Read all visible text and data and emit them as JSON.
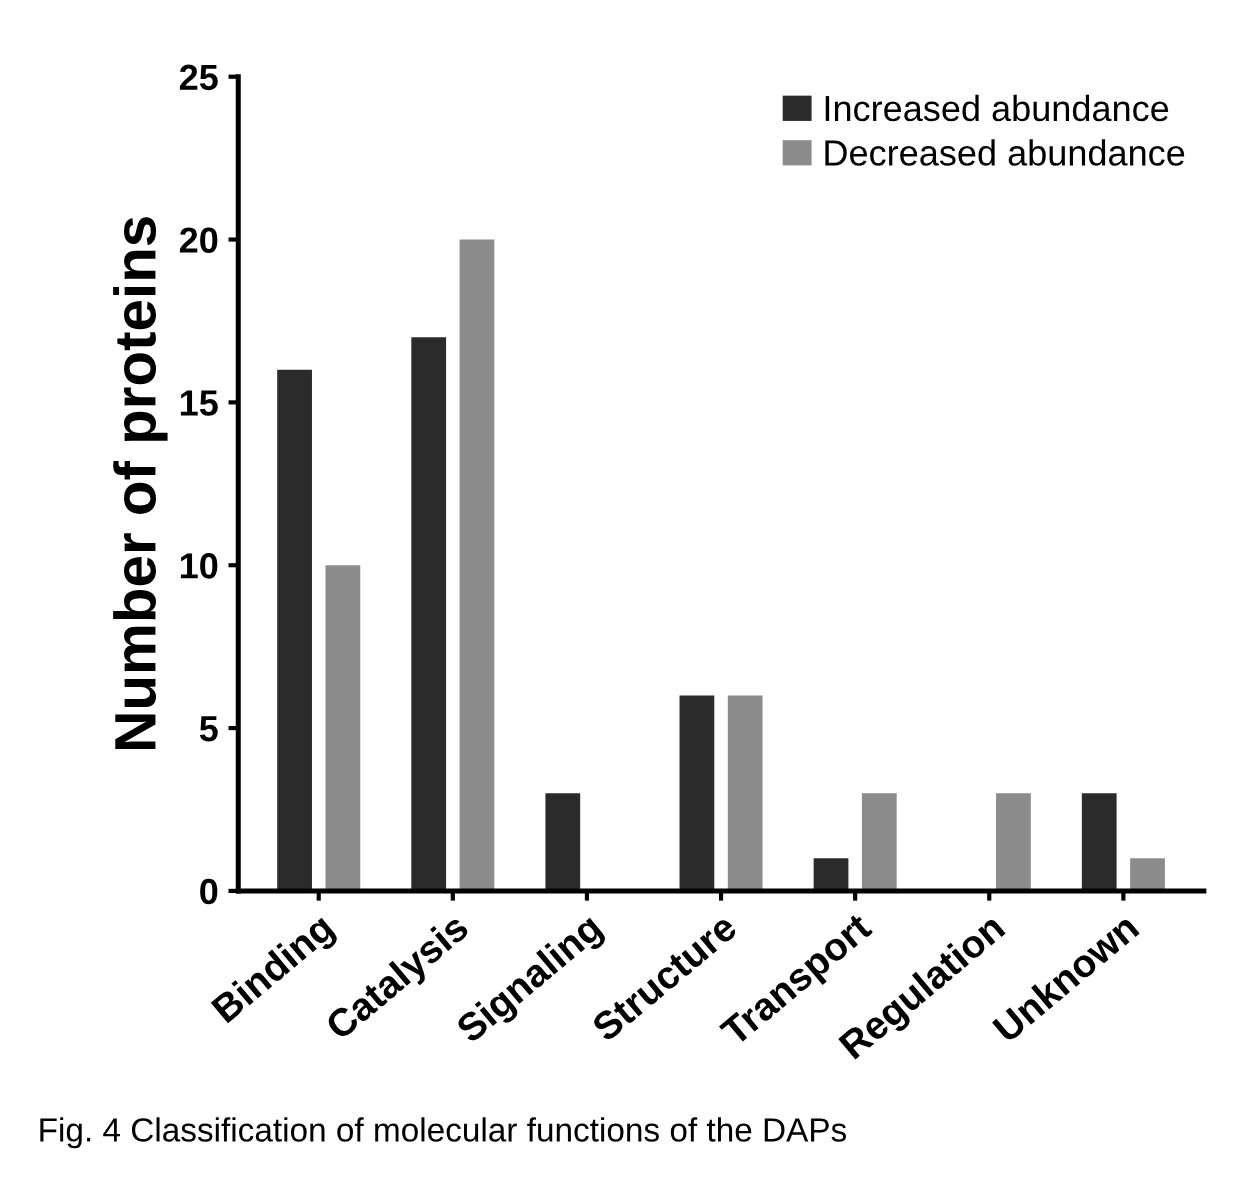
{
  "chart_data": {
    "type": "bar",
    "ylabel": "Number of proteins",
    "categories": [
      "Binding",
      "Catalysis",
      "Signaling",
      "Structure",
      "Transport",
      "Regulation",
      "Unknown"
    ],
    "series": [
      {
        "name": "Increased abundance",
        "color": "#2b2b2b",
        "values": [
          16,
          17,
          3,
          6,
          1,
          0,
          3
        ]
      },
      {
        "name": "Decreased abundance",
        "color": "#8c8c8c",
        "values": [
          10,
          20,
          0,
          6,
          3,
          3,
          1
        ]
      }
    ],
    "ylim": [
      0,
      25
    ],
    "yticks": [
      0,
      5,
      10,
      15,
      20,
      25
    ],
    "grid": false,
    "legend": "top right",
    "annotations": [
      "Fig. 4 Classification of molecular functions of the DAPs"
    ]
  }
}
